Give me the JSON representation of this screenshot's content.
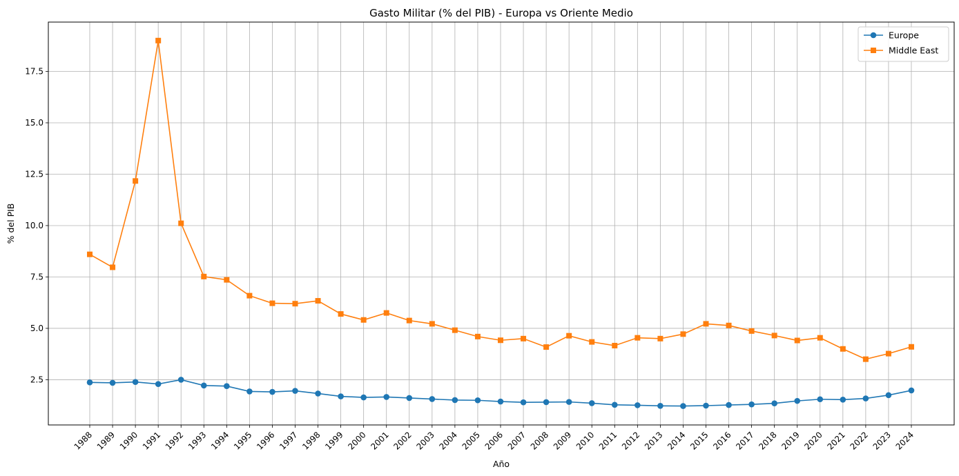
{
  "chart_data": {
    "type": "line",
    "title": "Gasto Militar (% del PIB) - Europa vs Oriente Medio",
    "xlabel": "Año",
    "ylabel": "% del PIB",
    "ylim": [
      0.3,
      19.9
    ],
    "yticks": [
      2.5,
      5.0,
      7.5,
      10.0,
      12.5,
      15.0,
      17.5
    ],
    "ytick_labels": [
      "2.5",
      "5.0",
      "7.5",
      "10.0",
      "12.5",
      "15.0",
      "17.5"
    ],
    "grid": true,
    "legend_position": "top-right",
    "x": [
      "1988",
      "1989",
      "1990",
      "1991",
      "1992",
      "1993",
      "1994",
      "1995",
      "1996",
      "1997",
      "1998",
      "1999",
      "2000",
      "2001",
      "2002",
      "2003",
      "2004",
      "2005",
      "2006",
      "2007",
      "2008",
      "2009",
      "2010",
      "2011",
      "2012",
      "2013",
      "2014",
      "2015",
      "2016",
      "2017",
      "2018",
      "2019",
      "2020",
      "2021",
      "2022",
      "2023",
      "2024"
    ],
    "series": [
      {
        "name": "Europe",
        "color": "#1f77b4",
        "marker": "circle",
        "values": [
          2.37,
          2.35,
          2.39,
          2.29,
          2.5,
          2.22,
          2.19,
          1.93,
          1.91,
          1.96,
          1.83,
          1.69,
          1.64,
          1.66,
          1.61,
          1.56,
          1.51,
          1.5,
          1.44,
          1.4,
          1.41,
          1.42,
          1.36,
          1.28,
          1.26,
          1.23,
          1.22,
          1.24,
          1.27,
          1.3,
          1.35,
          1.47,
          1.55,
          1.53,
          1.59,
          1.75,
          1.98
        ]
      },
      {
        "name": "Middle East",
        "color": "#ff7f0e",
        "marker": "square",
        "values": [
          8.6,
          7.97,
          12.17,
          19.0,
          10.11,
          7.52,
          7.36,
          6.59,
          6.22,
          6.2,
          6.34,
          5.7,
          5.41,
          5.75,
          5.38,
          5.22,
          4.91,
          4.6,
          4.42,
          4.5,
          4.09,
          4.64,
          4.34,
          4.16,
          4.54,
          4.5,
          4.72,
          5.22,
          5.14,
          4.87,
          4.65,
          4.41,
          4.54,
          4.0,
          3.5,
          3.77,
          4.1
        ]
      }
    ]
  }
}
